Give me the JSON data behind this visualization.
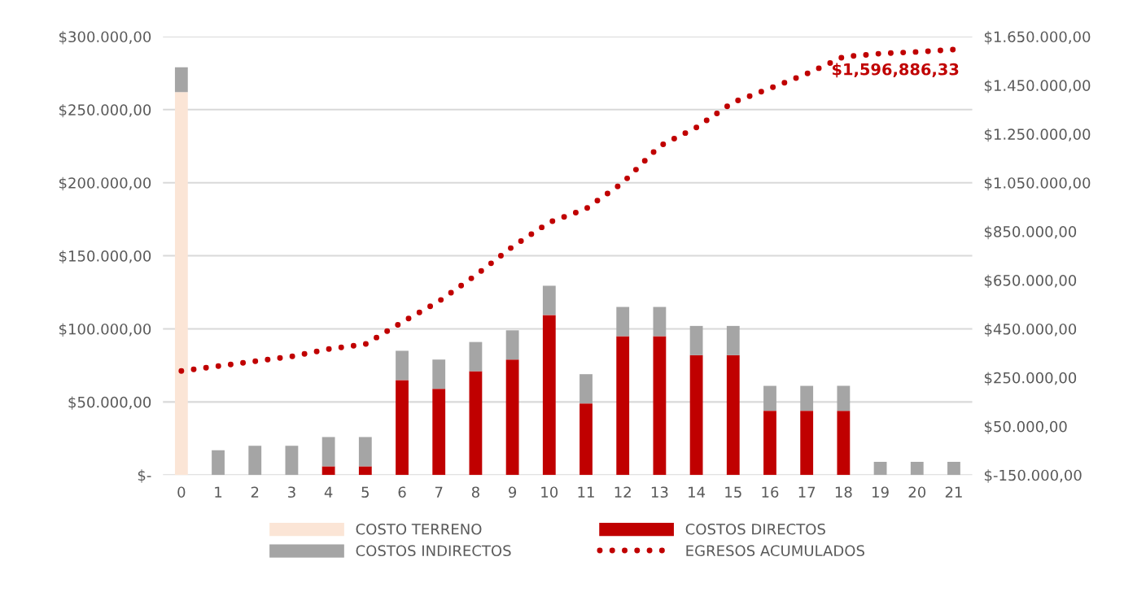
{
  "chart_data": {
    "type": "bar",
    "stacked": true,
    "categories": [
      "0",
      "1",
      "2",
      "3",
      "4",
      "5",
      "6",
      "7",
      "8",
      "9",
      "10",
      "11",
      "12",
      "13",
      "14",
      "15",
      "16",
      "17",
      "18",
      "19",
      "20",
      "21"
    ],
    "series": [
      {
        "name": "COSTO TERRENO",
        "color": "#fbe5d6",
        "values": [
          262000,
          null,
          null,
          null,
          null,
          null,
          null,
          null,
          null,
          null,
          null,
          null,
          null,
          null,
          null,
          null,
          null,
          null,
          null,
          null,
          null,
          null
        ]
      },
      {
        "name": "COSTOS DIRECTOS",
        "color": "#c00000",
        "values": [
          null,
          null,
          null,
          null,
          6000,
          6000,
          65000,
          59000,
          71000,
          79000,
          109500,
          49000,
          95000,
          95000,
          82000,
          82000,
          44000,
          44000,
          44000,
          null,
          null,
          null
        ]
      },
      {
        "name": "COSTOS INDIRECTOS",
        "color": "#a5a5a5",
        "values": [
          17000,
          17000,
          20000,
          20000,
          20000,
          20000,
          20000,
          20000,
          20000,
          20000,
          20000,
          20000,
          20000,
          20000,
          20000,
          20000,
          17000,
          17000,
          17000,
          9000,
          9000,
          9000
        ]
      },
      {
        "name": "EGRESOS ACUMULADOS",
        "type": "line",
        "axis": "y2",
        "color": "#c00000",
        "line_style": "dotted",
        "values": [
          277000,
          297000,
          317000,
          337000,
          367000,
          387000,
          477000,
          563000,
          670000,
          787000,
          887000,
          943000,
          1050000,
          1200000,
          1277000,
          1380000,
          1437000,
          1497000,
          1567000,
          1580000,
          1587000,
          1596886.33
        ],
        "value_labels": [
          null,
          null,
          null,
          null,
          null,
          null,
          null,
          null,
          null,
          null,
          null,
          null,
          null,
          null,
          null,
          null,
          null,
          null,
          null,
          null,
          null,
          "$1,596,886,33"
        ]
      }
    ],
    "ylim": [
      0,
      300000
    ],
    "yticks": [
      {
        "value": 0,
        "label": "$-"
      },
      {
        "value": 50000,
        "label": "$50.000,00"
      },
      {
        "value": 100000,
        "label": "$100.000,00"
      },
      {
        "value": 150000,
        "label": "$150.000,00"
      },
      {
        "value": 200000,
        "label": "$200.000,00"
      },
      {
        "value": 250000,
        "label": "$250.000,00"
      },
      {
        "value": 300000,
        "label": "$300.000,00"
      }
    ],
    "y2lim": [
      -150000,
      1650000
    ],
    "y2ticks": [
      {
        "value": -150000,
        "label": "$-150.000,00"
      },
      {
        "value": 50000,
        "label": "$50.000,00"
      },
      {
        "value": 250000,
        "label": "$250.000,00"
      },
      {
        "value": 450000,
        "label": "$450.000,00"
      },
      {
        "value": 650000,
        "label": "$650.000,00"
      },
      {
        "value": 850000,
        "label": "$850.000,00"
      },
      {
        "value": 1050000,
        "label": "$1.050.000,00"
      },
      {
        "value": 1250000,
        "label": "$1.250.000,00"
      },
      {
        "value": 1450000,
        "label": "$1.450.000,00"
      },
      {
        "value": 1650000,
        "label": "$1.650.000,00"
      }
    ],
    "grid": "y",
    "legend": "bottom"
  }
}
